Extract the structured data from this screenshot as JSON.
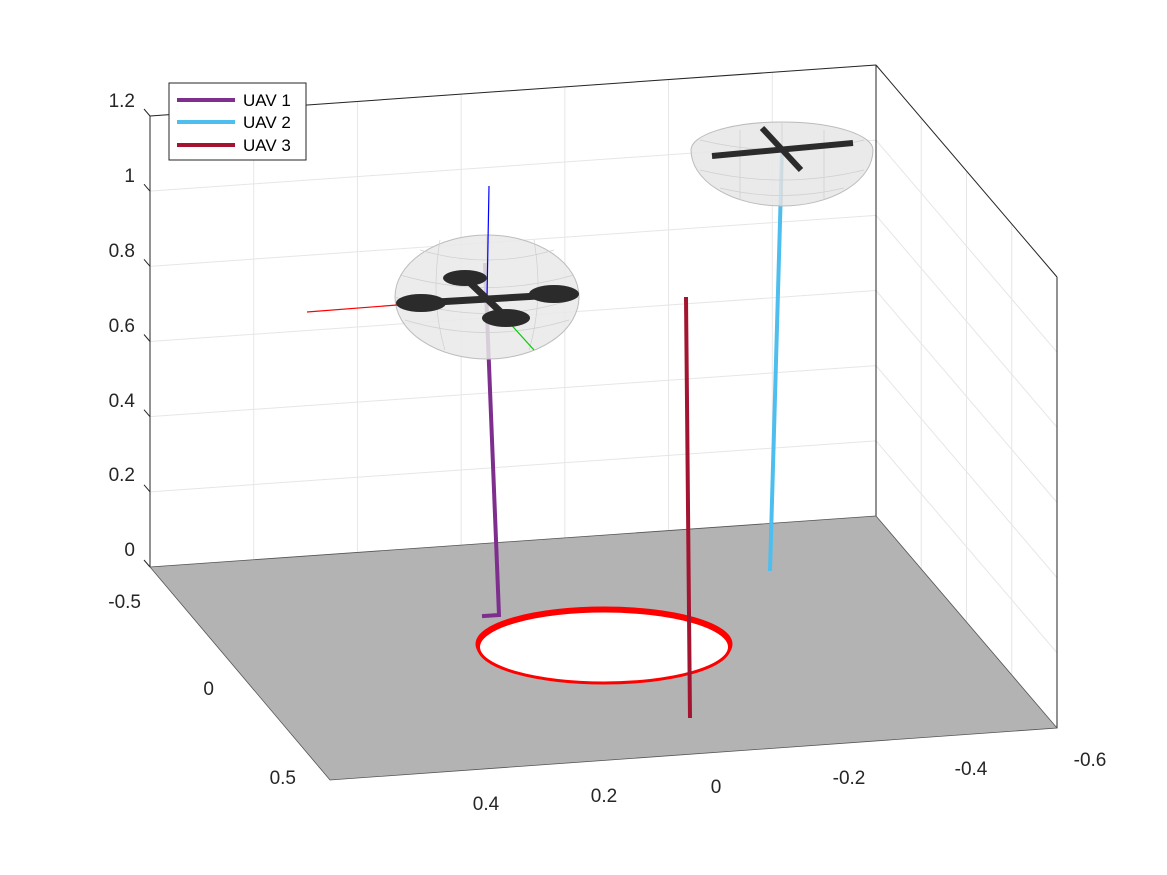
{
  "chart_data": {
    "type": "line",
    "projection": "3d",
    "x_axis": {
      "ticks": [
        0.4,
        0.2,
        0,
        -0.2,
        -0.4,
        -0.6
      ],
      "tick_labels": [
        "0.4",
        "0.2",
        "0",
        "-0.2",
        "-0.4",
        "-0.6"
      ]
    },
    "y_axis": {
      "ticks": [
        -0.5,
        0,
        0.5
      ],
      "tick_labels": [
        "-0.5",
        "0",
        "0.5"
      ]
    },
    "z_axis": {
      "ticks": [
        0,
        0.2,
        0.4,
        0.6,
        0.8,
        1,
        1.2
      ],
      "tick_labels": [
        "0",
        "0.2",
        "0.4",
        "0.6",
        "0.8",
        "1",
        "1.2"
      ],
      "range": [
        0,
        1.2
      ]
    },
    "grid": true,
    "legend": {
      "placement": "top-left"
    },
    "floor": {
      "color": "#b3b3b3"
    },
    "target_ring": {
      "color": "#ff0000",
      "z": 0
    },
    "series": [
      {
        "name": "UAV 1",
        "color": "#7e2f8e",
        "start_z": 0.0,
        "end_z": 0.7
      },
      {
        "name": "UAV 2",
        "color": "#4dbeee",
        "start_z": 0.0,
        "end_z": 1.05
      },
      {
        "name": "UAV 3",
        "color": "#a2142f",
        "start_z": 0.0,
        "end_z": 0.65
      }
    ],
    "drones": [
      {
        "attached_to": "UAV 1",
        "type": "quadrotor-with-shield",
        "body_axes_colors": [
          "#ff0000",
          "#00cc00",
          "#0000ff"
        ]
      },
      {
        "attached_to": "UAV 2",
        "type": "quadrotor-with-shield"
      }
    ]
  }
}
